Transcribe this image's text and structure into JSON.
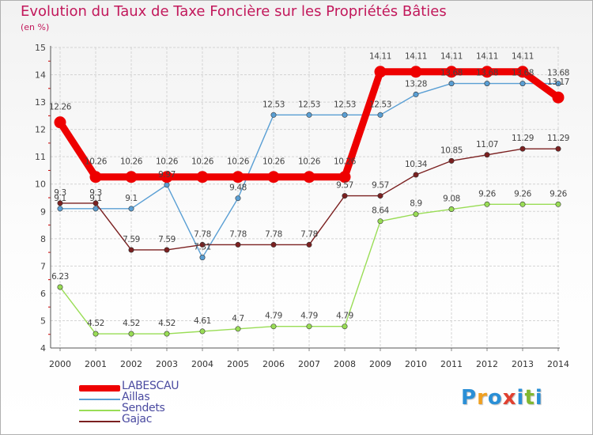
{
  "header": {
    "title": "Evolution du Taux de Taxe Foncière sur les Propriétés Bâties",
    "unit": "(en %)"
  },
  "logo": {
    "letters": [
      "P",
      "r",
      "o",
      "x",
      "i",
      "t",
      "i"
    ],
    "colors": [
      "#2a8fd6",
      "#f0a020",
      "#2a8fd6",
      "#e04030",
      "#2a8fd6",
      "#80b830",
      "#2a8fd6"
    ]
  },
  "chart_data": {
    "type": "line",
    "title": "Evolution du Taux de Taxe Foncière sur les Propriétés Bâties",
    "xlabel": "",
    "ylabel": "(en %)",
    "ylim": [
      4,
      15
    ],
    "yticks": [
      4,
      5,
      6,
      7,
      8,
      9,
      10,
      11,
      12,
      13,
      14,
      15
    ],
    "grid": true,
    "x": [
      "2000",
      "2001",
      "2002",
      "2003",
      "2004",
      "2005",
      "2006",
      "2007",
      "2008",
      "2009",
      "2010",
      "2011",
      "2012",
      "2013",
      "2014"
    ],
    "series": [
      {
        "name": "LABESCAU",
        "color": "#ee0000",
        "values": [
          12.26,
          10.26,
          10.26,
          10.26,
          10.26,
          10.26,
          10.26,
          10.26,
          10.26,
          14.11,
          14.11,
          14.11,
          14.11,
          14.11,
          13.17
        ],
        "labels": [
          "12.26",
          "10.26",
          "10.26",
          "10.26",
          "10.26",
          "10.26",
          "10.26",
          "10.26",
          "10.26",
          "14.11",
          "14.11",
          "14.11",
          "14.11",
          "14.11",
          "13.17"
        ]
      },
      {
        "name": "Aillas",
        "color": "#5a9fd4",
        "values": [
          9.1,
          9.1,
          9.1,
          9.97,
          7.31,
          9.48,
          12.53,
          12.53,
          12.53,
          12.53,
          13.28,
          13.68,
          13.68,
          13.68,
          13.68
        ],
        "labels": [
          "9.1",
          "9.1",
          "9.1",
          "9.97",
          "7.31",
          "9.48",
          "12.53",
          "12.53",
          "12.53",
          "12.53",
          "13.28",
          "13.68",
          "13.68",
          "13.68",
          "13.68"
        ]
      },
      {
        "name": "Sendets",
        "color": "#99dd55",
        "values": [
          6.23,
          4.52,
          4.52,
          4.52,
          4.61,
          4.7,
          4.79,
          4.79,
          4.79,
          8.64,
          8.9,
          9.08,
          9.26,
          9.26,
          9.26
        ],
        "labels": [
          "6.23",
          "4.52",
          "4.52",
          "4.52",
          "4.61",
          "4.7",
          "4.79",
          "4.79",
          "4.79",
          "8.64",
          "8.9",
          "9.08",
          "9.26",
          "9.26",
          "9.26"
        ]
      },
      {
        "name": "Gajac",
        "color": "#7b2020",
        "values": [
          9.3,
          9.3,
          7.59,
          7.59,
          7.78,
          7.78,
          7.78,
          7.78,
          9.57,
          9.57,
          10.34,
          10.85,
          11.07,
          11.29,
          11.29
        ],
        "labels": [
          "9.3",
          "9.3",
          "7.59",
          "7.59",
          "7.78",
          "7.78",
          "7.78",
          "7.78",
          "9.57",
          "9.57",
          "10.34",
          "10.85",
          "11.07",
          "11.29",
          "11.29"
        ]
      }
    ],
    "legend": [
      "LABESCAU",
      "Aillas",
      "Sendets",
      "Gajac"
    ],
    "legend_position": "bottom-left"
  }
}
